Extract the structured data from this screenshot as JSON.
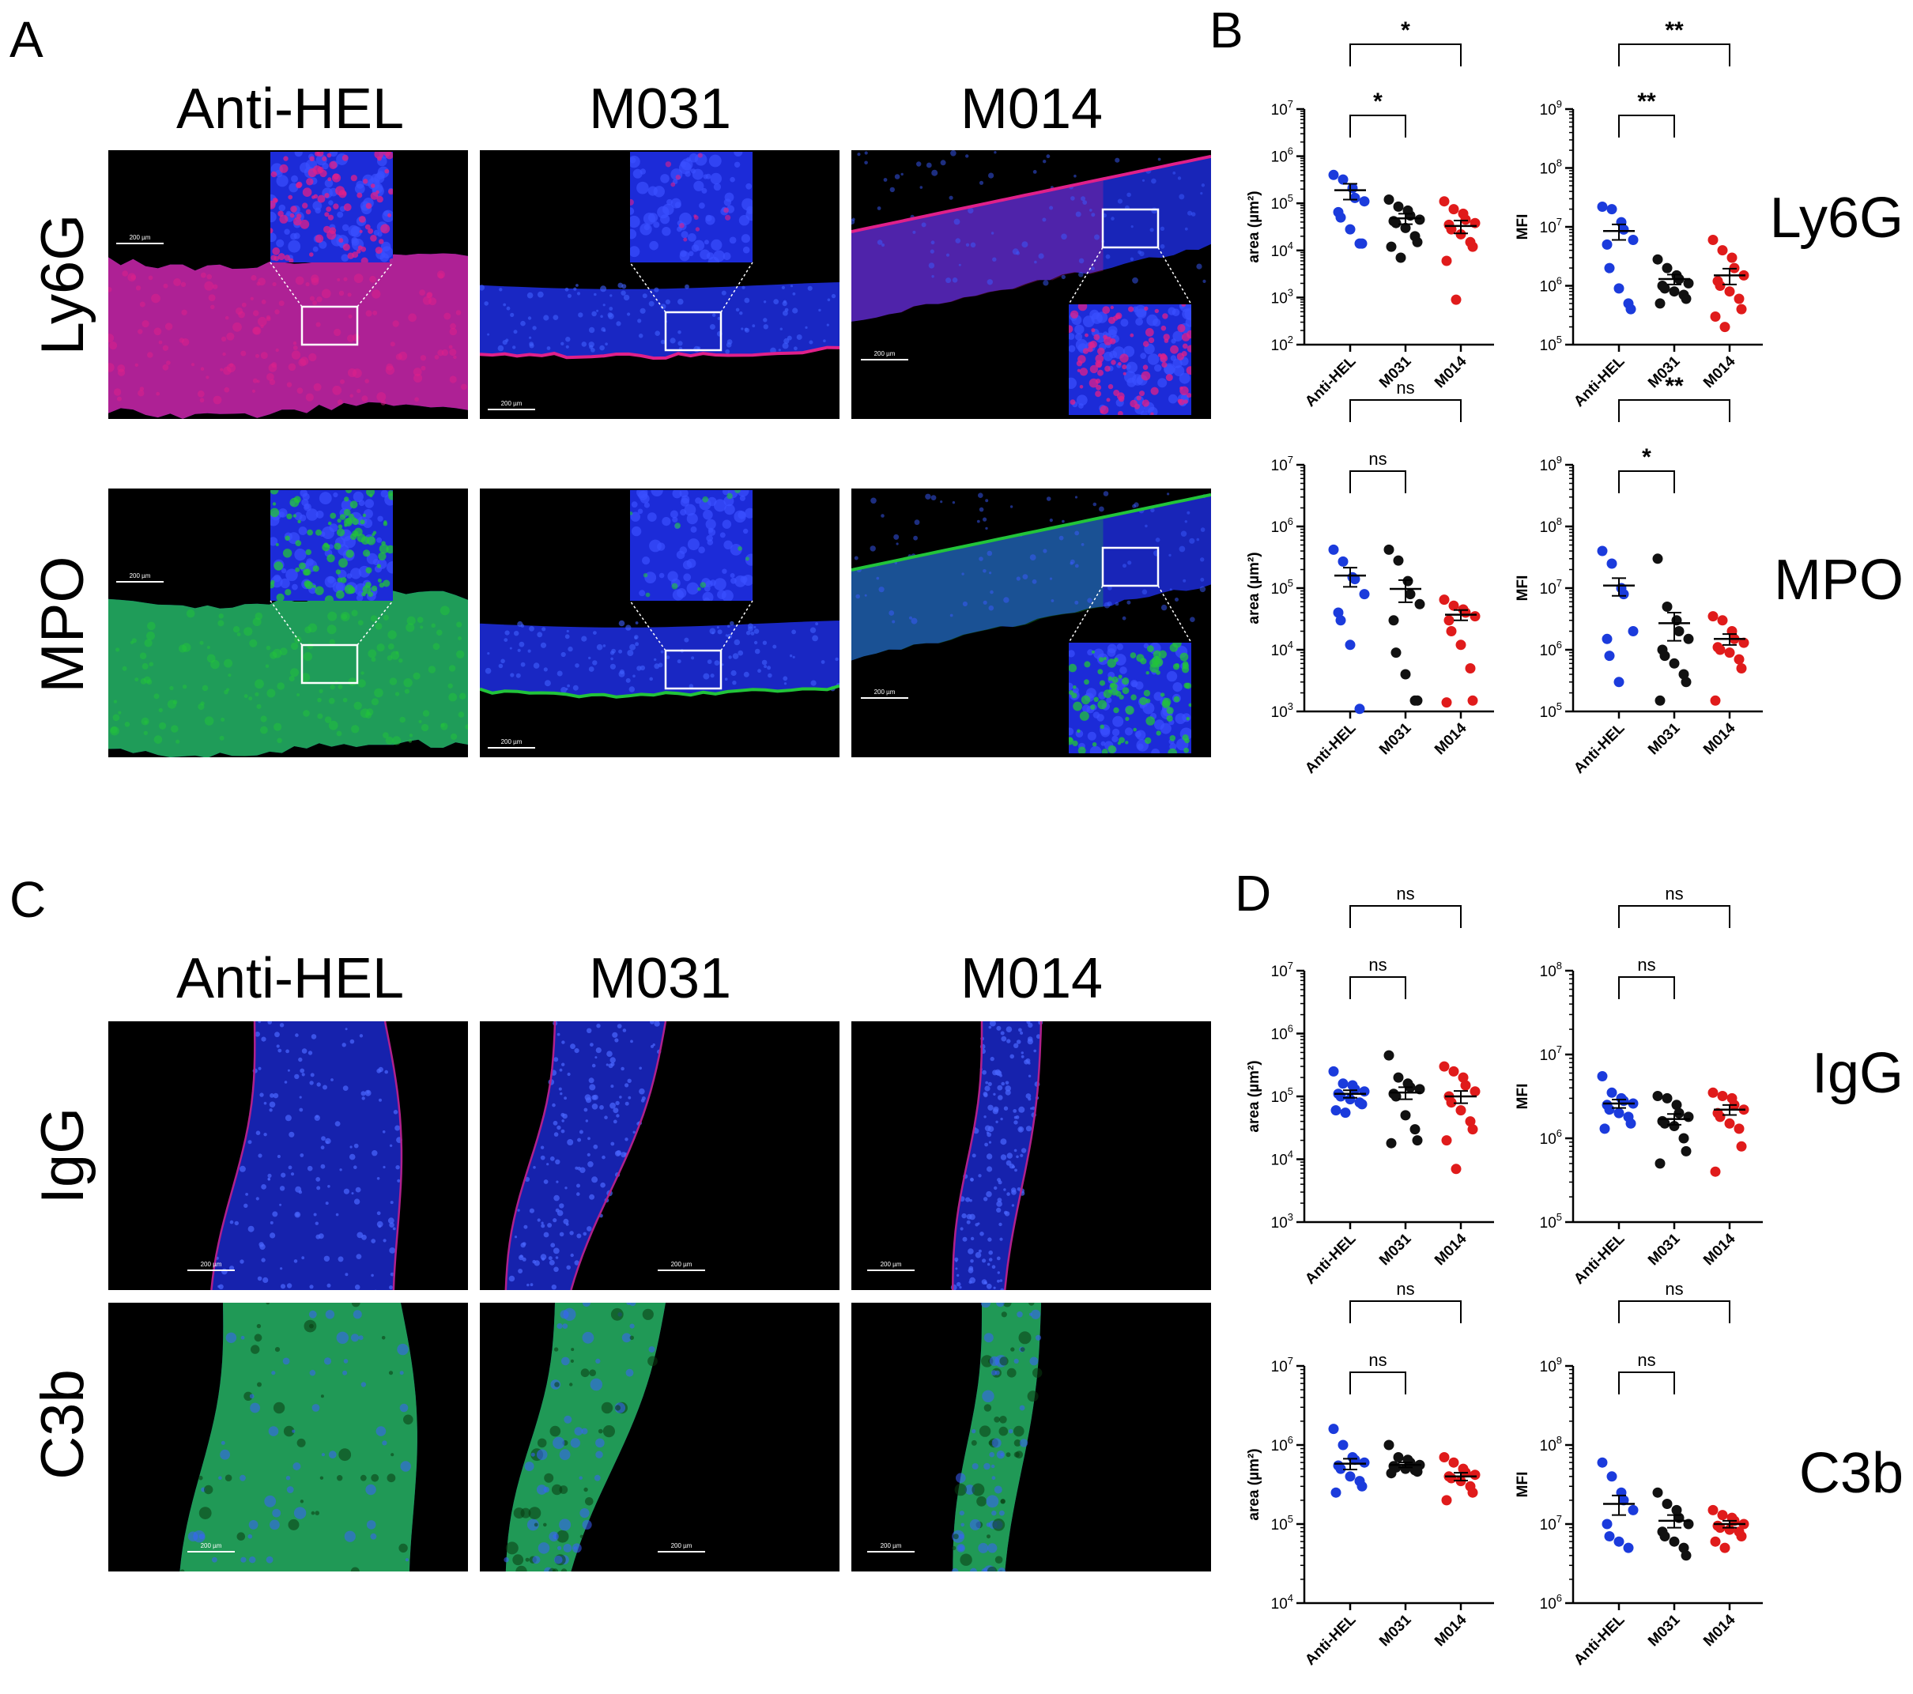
{
  "panel_letters": {
    "A": "A",
    "B": "B",
    "C": "C",
    "D": "D"
  },
  "groups": [
    "Anti-HEL",
    "M031",
    "M014"
  ],
  "rows_top": [
    "Ly6G",
    "MPO"
  ],
  "rows_bottom": [
    "IgG",
    "C3b"
  ],
  "scale_bar_label": "200 µm",
  "colors": {
    "anti_hel": "#1b3bdc",
    "m031": "#111111",
    "m014": "#e01b1b",
    "nuclei": "#1c2bd8",
    "ly6g": "#e0208a",
    "mpo": "#22c43a",
    "igg": "#b0208c",
    "c3b": "#24c23a"
  },
  "chart_data": [
    {
      "type": "scatter",
      "id": "B-Ly6G-area",
      "row_label": "Ly6G",
      "ylabel": "area (µm²)",
      "yscale": "log",
      "ylim_exp": [
        2,
        7
      ],
      "categories": [
        "Anti-HEL",
        "M031",
        "M014"
      ],
      "series": [
        {
          "values": [
            400000,
            320000,
            210000,
            130000,
            110000,
            65000,
            50000,
            28000,
            14000,
            14000
          ]
        },
        {
          "values": [
            120000,
            85000,
            70000,
            55000,
            45000,
            42000,
            38000,
            30000,
            20000,
            15000,
            12000,
            7000
          ]
        },
        {
          "values": [
            110000,
            75000,
            60000,
            45000,
            38000,
            35000,
            28000,
            22000,
            15000,
            12000,
            6000,
            900
          ]
        }
      ],
      "mean": [
        190000,
        48000,
        33000
      ],
      "sem": [
        70000,
        12000,
        10000
      ],
      "significance": [
        {
          "from": "Anti-HEL",
          "to": "M031",
          "label": "*"
        },
        {
          "from": "Anti-HEL",
          "to": "M014",
          "label": "*"
        }
      ]
    },
    {
      "type": "scatter",
      "id": "B-Ly6G-MFI",
      "ylabel": "MFI",
      "yscale": "log",
      "ylim_exp": [
        5,
        9
      ],
      "categories": [
        "Anti-HEL",
        "M031",
        "M014"
      ],
      "series": [
        {
          "values": [
            22000000,
            20000000,
            12000000,
            9000000,
            6000000,
            5000000,
            2000000,
            900000,
            500000,
            400000
          ]
        },
        {
          "values": [
            2800000,
            2000000,
            1500000,
            1300000,
            1100000,
            1000000,
            900000,
            800000,
            700000,
            600000,
            500000
          ]
        },
        {
          "values": [
            6000000,
            4000000,
            3000000,
            2000000,
            1500000,
            1200000,
            1000000,
            800000,
            600000,
            400000,
            300000,
            200000
          ]
        }
      ],
      "mean": [
        8500000,
        1300000,
        1500000
      ],
      "sem": [
        2500000,
        250000,
        450000
      ],
      "significance": [
        {
          "from": "Anti-HEL",
          "to": "M031",
          "label": "**"
        },
        {
          "from": "Anti-HEL",
          "to": "M014",
          "label": "**"
        }
      ]
    },
    {
      "type": "scatter",
      "id": "B-MPO-area",
      "row_label": "MPO",
      "ylabel": "area (µm²)",
      "yscale": "log",
      "ylim_exp": [
        3,
        7
      ],
      "categories": [
        "Anti-HEL",
        "M031",
        "M014"
      ],
      "series": [
        {
          "values": [
            420000,
            270000,
            150000,
            140000,
            80000,
            40000,
            30000,
            12000,
            1100
          ]
        },
        {
          "values": [
            420000,
            280000,
            130000,
            80000,
            55000,
            30000,
            9000,
            4000,
            1500,
            1500
          ]
        },
        {
          "values": [
            65000,
            52000,
            45000,
            40000,
            35000,
            30000,
            20000,
            12000,
            5000,
            1500,
            1400
          ]
        }
      ],
      "mean": [
        160000,
        97000,
        37000
      ],
      "sem": [
        55000,
        38000,
        7000
      ],
      "significance": [
        {
          "from": "Anti-HEL",
          "to": "M031",
          "label": "ns"
        },
        {
          "from": "Anti-HEL",
          "to": "M014",
          "label": "ns"
        }
      ]
    },
    {
      "type": "scatter",
      "id": "B-MPO-MFI",
      "ylabel": "MFI",
      "yscale": "log",
      "ylim_exp": [
        5,
        9
      ],
      "categories": [
        "Anti-HEL",
        "M031",
        "M014"
      ],
      "series": [
        {
          "values": [
            40000000,
            25000000,
            10000000,
            8000000,
            2000000,
            1500000,
            800000,
            300000
          ]
        },
        {
          "values": [
            30000000,
            5000000,
            3000000,
            2000000,
            1500000,
            1000000,
            800000,
            600000,
            400000,
            300000,
            150000
          ]
        },
        {
          "values": [
            3500000,
            3000000,
            2000000,
            1500000,
            1300000,
            1100000,
            1000000,
            900000,
            700000,
            500000,
            150000
          ]
        }
      ],
      "mean": [
        11000000,
        2700000,
        1500000
      ],
      "sem": [
        3500000,
        1300000,
        300000
      ],
      "significance": [
        {
          "from": "Anti-HEL",
          "to": "M031",
          "label": "*"
        },
        {
          "from": "Anti-HEL",
          "to": "M014",
          "label": "**"
        }
      ]
    },
    {
      "type": "scatter",
      "id": "D-IgG-area",
      "row_label": "IgG",
      "ylabel": "area (µm²)",
      "yscale": "log",
      "ylim_exp": [
        3,
        7
      ],
      "categories": [
        "Anti-HEL",
        "M031",
        "M014"
      ],
      "series": [
        {
          "values": [
            250000,
            160000,
            150000,
            130000,
            120000,
            110000,
            100000,
            90000,
            80000,
            75000,
            60000,
            55000
          ]
        },
        {
          "values": [
            450000,
            200000,
            160000,
            140000,
            130000,
            110000,
            100000,
            50000,
            30000,
            20000,
            18000
          ]
        },
        {
          "values": [
            300000,
            250000,
            200000,
            150000,
            120000,
            100000,
            80000,
            60000,
            40000,
            30000,
            20000,
            7000
          ]
        }
      ],
      "mean": [
        110000,
        115000,
        100000
      ],
      "sem": [
        15000,
        25000,
        22000
      ],
      "significance": [
        {
          "from": "Anti-HEL",
          "to": "M031",
          "label": "ns"
        },
        {
          "from": "Anti-HEL",
          "to": "M014",
          "label": "ns"
        }
      ]
    },
    {
      "type": "scatter",
      "id": "D-IgG-MFI",
      "ylabel": "MFI",
      "yscale": "log",
      "ylim_exp": [
        5,
        8
      ],
      "categories": [
        "Anti-HEL",
        "M031",
        "M014"
      ],
      "series": [
        {
          "values": [
            5500000,
            3500000,
            3000000,
            2800000,
            2600000,
            2500000,
            2200000,
            2000000,
            1800000,
            1500000,
            1300000
          ]
        },
        {
          "values": [
            3200000,
            3000000,
            2500000,
            2000000,
            1800000,
            1600000,
            1500000,
            1400000,
            1000000,
            700000,
            500000
          ]
        },
        {
          "values": [
            3500000,
            3200000,
            3000000,
            2500000,
            2200000,
            2000000,
            1800000,
            1500000,
            1300000,
            800000,
            400000
          ]
        }
      ],
      "mean": [
        2600000,
        1700000,
        2200000
      ],
      "sem": [
        300000,
        250000,
        300000
      ],
      "significance": [
        {
          "from": "Anti-HEL",
          "to": "M031",
          "label": "ns"
        },
        {
          "from": "Anti-HEL",
          "to": "M014",
          "label": "ns"
        }
      ]
    },
    {
      "type": "scatter",
      "id": "D-C3b-area",
      "row_label": "C3b",
      "ylabel": "area (µm²)",
      "yscale": "log",
      "ylim_exp": [
        4,
        7
      ],
      "categories": [
        "Anti-HEL",
        "M031",
        "M014"
      ],
      "series": [
        {
          "values": [
            1600000,
            1000000,
            700000,
            650000,
            600000,
            550000,
            500000,
            400000,
            350000,
            300000,
            250000
          ]
        },
        {
          "values": [
            1000000,
            700000,
            650000,
            600000,
            560000,
            540000,
            520000,
            500000,
            480000,
            460000,
            440000
          ]
        },
        {
          "values": [
            700000,
            600000,
            500000,
            450000,
            420000,
            400000,
            380000,
            350000,
            300000,
            250000,
            200000
          ]
        }
      ],
      "mean": [
        580000,
        560000,
        400000
      ],
      "sem": [
        90000,
        40000,
        45000
      ],
      "significance": [
        {
          "from": "Anti-HEL",
          "to": "M031",
          "label": "ns"
        },
        {
          "from": "Anti-HEL",
          "to": "M014",
          "label": "ns"
        }
      ]
    },
    {
      "type": "scatter",
      "id": "D-C3b-MFI",
      "ylabel": "MFI",
      "yscale": "log",
      "ylim_exp": [
        6,
        9
      ],
      "categories": [
        "Anti-HEL",
        "M031",
        "M014"
      ],
      "series": [
        {
          "values": [
            60000000,
            40000000,
            25000000,
            20000000,
            15000000,
            10000000,
            7000000,
            6000000,
            5000000
          ]
        },
        {
          "values": [
            25000000,
            18000000,
            15000000,
            12000000,
            10000000,
            8000000,
            7000000,
            6000000,
            5000000,
            4000000
          ]
        },
        {
          "values": [
            15000000,
            13000000,
            12000000,
            11000000,
            10000000,
            9500000,
            9000000,
            8500000,
            8000000,
            7000000,
            6000000,
            5000000
          ]
        }
      ],
      "mean": [
        18000000,
        11000000,
        10000000
      ],
      "sem": [
        5000000,
        2000000,
        1000000
      ],
      "significance": [
        {
          "from": "Anti-HEL",
          "to": "M031",
          "label": "ns"
        },
        {
          "from": "Anti-HEL",
          "to": "M014",
          "label": "ns"
        }
      ]
    }
  ]
}
